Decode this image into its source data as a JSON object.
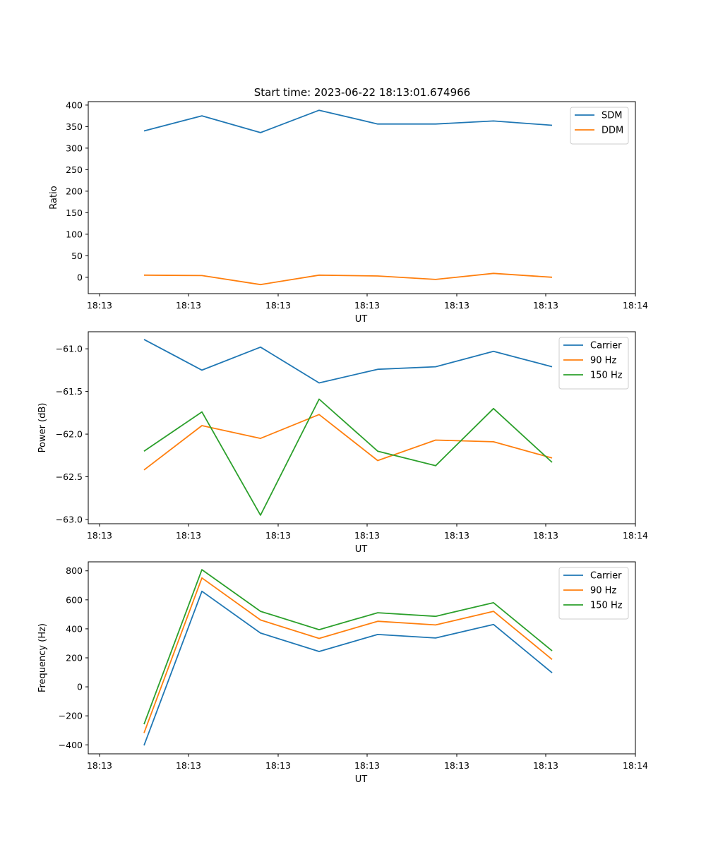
{
  "figure_title": "Start time: 2023-06-22 18:13:01.674966",
  "chart_data": [
    {
      "type": "line",
      "xlabel": "UT",
      "ylabel": "Ratio",
      "xticks": [
        "18:13",
        "18:13",
        "18:13",
        "18:13",
        "18:13",
        "18:13",
        "18:14"
      ],
      "yticks": [
        "400",
        "350",
        "300",
        "250",
        "200",
        "150",
        "100",
        "50",
        "0"
      ],
      "ylim": [
        -38,
        408
      ],
      "grid": false,
      "legend_placement": "top-right",
      "x": [
        1,
        2,
        3,
        4,
        5,
        6,
        7,
        8
      ],
      "series": [
        {
          "name": "SDM",
          "color": "#1f77b4",
          "values": [
            340,
            375,
            336,
            388,
            356,
            356,
            363,
            353
          ]
        },
        {
          "name": "DDM",
          "color": "#ff7f0e",
          "values": [
            5,
            4,
            -17,
            5,
            3,
            -5,
            9,
            0
          ]
        }
      ]
    },
    {
      "type": "line",
      "xlabel": "UT",
      "ylabel": "Power (dB)",
      "xticks": [
        "18:13",
        "18:13",
        "18:13",
        "18:13",
        "18:13",
        "18:13",
        "18:14"
      ],
      "yticks": [
        "−61.0",
        "−61.5",
        "−62.0",
        "−62.5",
        "−63.0"
      ],
      "ylim": [
        -63.05,
        -60.8
      ],
      "grid": false,
      "legend_placement": "top-right",
      "x": [
        1,
        2,
        3,
        4,
        5,
        6,
        7,
        8
      ],
      "series": [
        {
          "name": "Carrier",
          "color": "#1f77b4",
          "values": [
            -60.89,
            -61.25,
            -60.98,
            -61.4,
            -61.24,
            -61.21,
            -61.03,
            -61.21
          ]
        },
        {
          "name": "90 Hz",
          "color": "#ff7f0e",
          "values": [
            -62.42,
            -61.9,
            -62.05,
            -61.77,
            -62.31,
            -62.07,
            -62.09,
            -62.28
          ]
        },
        {
          "name": "150 Hz",
          "color": "#2ca02c",
          "values": [
            -62.2,
            -61.74,
            -62.95,
            -61.59,
            -62.2,
            -62.37,
            -61.7,
            -62.33
          ]
        }
      ]
    },
    {
      "type": "line",
      "xlabel": "UT",
      "ylabel": "Frequency (Hz)",
      "xticks": [
        "18:13",
        "18:13",
        "18:13",
        "18:13",
        "18:13",
        "18:13",
        "18:14"
      ],
      "yticks": [
        "800",
        "600",
        "400",
        "200",
        "0",
        "−200",
        "−400"
      ],
      "ylim": [
        -462,
        862
      ],
      "grid": false,
      "legend_placement": "top-right",
      "x": [
        1,
        2,
        3,
        4,
        5,
        6,
        7,
        8
      ],
      "series": [
        {
          "name": "Carrier",
          "color": "#1f77b4",
          "values": [
            -404,
            659,
            371,
            244,
            361,
            337,
            430,
            97
          ]
        },
        {
          "name": "90 Hz",
          "color": "#ff7f0e",
          "values": [
            -318,
            751,
            461,
            334,
            452,
            427,
            521,
            189
          ]
        },
        {
          "name": "150 Hz",
          "color": "#2ca02c",
          "values": [
            -258,
            808,
            521,
            394,
            511,
            486,
            580,
            248
          ]
        }
      ]
    }
  ]
}
